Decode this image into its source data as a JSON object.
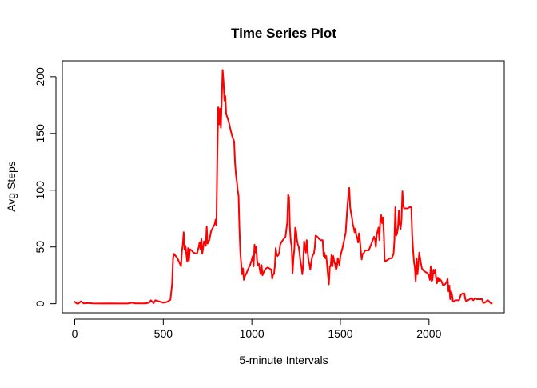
{
  "chart_data": {
    "type": "line",
    "title": "Time Series Plot",
    "xlabel": "5-minute Intervals",
    "ylabel": "Avg Steps",
    "xlim": [
      -70,
      2425
    ],
    "ylim": [
      -8,
      214
    ],
    "x_ticks": [
      0,
      500,
      1000,
      1500,
      2000
    ],
    "y_ticks": [
      0,
      50,
      100,
      150,
      200
    ],
    "grid": false,
    "legend": "none",
    "series": [
      {
        "color": "#ff0000",
        "points": [
          [
            0,
            1.7
          ],
          [
            10,
            0.3
          ],
          [
            20,
            0.1
          ],
          [
            35,
            2.1
          ],
          [
            50,
            0.3
          ],
          [
            80,
            0.6
          ],
          [
            100,
            0.3
          ],
          [
            150,
            0.2
          ],
          [
            200,
            0.3
          ],
          [
            250,
            0.2
          ],
          [
            300,
            0.2
          ],
          [
            325,
            1.0
          ],
          [
            340,
            0.3
          ],
          [
            400,
            0.3
          ],
          [
            420,
            1.0
          ],
          [
            430,
            3.0
          ],
          [
            445,
            0.5
          ],
          [
            455,
            3.0
          ],
          [
            500,
            0.9
          ],
          [
            520,
            1.5
          ],
          [
            540,
            3.4
          ],
          [
            550,
            18
          ],
          [
            555,
            40
          ],
          [
            560,
            44
          ],
          [
            580,
            40
          ],
          [
            600,
            33
          ],
          [
            605,
            46
          ],
          [
            610,
            52
          ],
          [
            615,
            63
          ],
          [
            620,
            48
          ],
          [
            625,
            51
          ],
          [
            630,
            44
          ],
          [
            635,
            37
          ],
          [
            640,
            49
          ],
          [
            645,
            38
          ],
          [
            650,
            48
          ],
          [
            660,
            47
          ],
          [
            670,
            45
          ],
          [
            690,
            44
          ],
          [
            700,
            50
          ],
          [
            705,
            54
          ],
          [
            710,
            48
          ],
          [
            715,
            57
          ],
          [
            720,
            44
          ],
          [
            730,
            55
          ],
          [
            740,
            51
          ],
          [
            745,
            68
          ],
          [
            750,
            53
          ],
          [
            760,
            56
          ],
          [
            770,
            64
          ],
          [
            780,
            67
          ],
          [
            790,
            70
          ],
          [
            795,
            74
          ],
          [
            800,
            69
          ],
          [
            805,
            130
          ],
          [
            810,
            173
          ],
          [
            815,
            158
          ],
          [
            820,
            172
          ],
          [
            825,
            155
          ],
          [
            830,
            180
          ],
          [
            835,
            206
          ],
          [
            840,
            196
          ],
          [
            845,
            179
          ],
          [
            850,
            183
          ],
          [
            855,
            167
          ],
          [
            860,
            165
          ],
          [
            870,
            160
          ],
          [
            880,
            153
          ],
          [
            890,
            147
          ],
          [
            900,
            143
          ],
          [
            905,
            124
          ],
          [
            910,
            114
          ],
          [
            915,
            108
          ],
          [
            920,
            100
          ],
          [
            925,
            95
          ],
          [
            930,
            66
          ],
          [
            935,
            45
          ],
          [
            940,
            35
          ],
          [
            945,
            26
          ],
          [
            950,
            31
          ],
          [
            955,
            21
          ],
          [
            960,
            24
          ],
          [
            970,
            27
          ],
          [
            980,
            31
          ],
          [
            990,
            34
          ],
          [
            1000,
            39
          ],
          [
            1005,
            42
          ],
          [
            1010,
            33
          ],
          [
            1015,
            52
          ],
          [
            1020,
            45
          ],
          [
            1025,
            50
          ],
          [
            1030,
            37
          ],
          [
            1035,
            34
          ],
          [
            1040,
            35
          ],
          [
            1045,
            30
          ],
          [
            1050,
            26
          ],
          [
            1055,
            34
          ],
          [
            1060,
            25
          ],
          [
            1070,
            29
          ],
          [
            1080,
            31
          ],
          [
            1090,
            32
          ],
          [
            1100,
            31
          ],
          [
            1110,
            30
          ],
          [
            1115,
            22
          ],
          [
            1120,
            26
          ],
          [
            1125,
            26
          ],
          [
            1130,
            33
          ],
          [
            1135,
            49
          ],
          [
            1140,
            43
          ],
          [
            1145,
            42
          ],
          [
            1150,
            43
          ],
          [
            1155,
            45
          ],
          [
            1160,
            52
          ],
          [
            1170,
            55
          ],
          [
            1180,
            57
          ],
          [
            1190,
            59
          ],
          [
            1200,
            72
          ],
          [
            1205,
            96
          ],
          [
            1210,
            94
          ],
          [
            1215,
            66
          ],
          [
            1220,
            55
          ],
          [
            1225,
            50
          ],
          [
            1230,
            27
          ],
          [
            1235,
            40
          ],
          [
            1240,
            48
          ],
          [
            1245,
            67
          ],
          [
            1250,
            64
          ],
          [
            1255,
            56
          ],
          [
            1260,
            52
          ],
          [
            1265,
            50
          ],
          [
            1270,
            44
          ],
          [
            1275,
            37
          ],
          [
            1280,
            33
          ],
          [
            1285,
            26
          ],
          [
            1290,
            34
          ],
          [
            1295,
            55
          ],
          [
            1300,
            50
          ],
          [
            1305,
            45
          ],
          [
            1310,
            56
          ],
          [
            1315,
            46
          ],
          [
            1320,
            38
          ],
          [
            1325,
            35
          ],
          [
            1330,
            30
          ],
          [
            1335,
            36
          ],
          [
            1340,
            41
          ],
          [
            1345,
            43
          ],
          [
            1350,
            44
          ],
          [
            1355,
            49
          ],
          [
            1360,
            60
          ],
          [
            1370,
            59
          ],
          [
            1380,
            57
          ],
          [
            1390,
            56
          ],
          [
            1400,
            56
          ],
          [
            1405,
            42
          ],
          [
            1410,
            45
          ],
          [
            1415,
            40
          ],
          [
            1420,
            42
          ],
          [
            1425,
            34
          ],
          [
            1430,
            25
          ],
          [
            1435,
            17
          ],
          [
            1440,
            33
          ],
          [
            1445,
            33
          ],
          [
            1450,
            43
          ],
          [
            1455,
            33
          ],
          [
            1460,
            42
          ],
          [
            1465,
            37
          ],
          [
            1470,
            35
          ],
          [
            1475,
            30
          ],
          [
            1480,
            32
          ],
          [
            1485,
            40
          ],
          [
            1490,
            37
          ],
          [
            1495,
            34
          ],
          [
            1500,
            42
          ],
          [
            1510,
            48
          ],
          [
            1520,
            55
          ],
          [
            1530,
            63
          ],
          [
            1540,
            87
          ],
          [
            1545,
            95
          ],
          [
            1550,
            102
          ],
          [
            1555,
            85
          ],
          [
            1560,
            80
          ],
          [
            1565,
            76
          ],
          [
            1570,
            70
          ],
          [
            1575,
            67
          ],
          [
            1580,
            63
          ],
          [
            1585,
            66
          ],
          [
            1590,
            60
          ],
          [
            1595,
            58
          ],
          [
            1600,
            54
          ],
          [
            1605,
            62
          ],
          [
            1610,
            56
          ],
          [
            1615,
            47
          ],
          [
            1620,
            39
          ],
          [
            1625,
            44
          ],
          [
            1630,
            44
          ],
          [
            1640,
            47
          ],
          [
            1650,
            47
          ],
          [
            1660,
            47
          ],
          [
            1670,
            51
          ],
          [
            1680,
            55
          ],
          [
            1690,
            59
          ],
          [
            1695,
            57
          ],
          [
            1700,
            50
          ],
          [
            1705,
            61
          ],
          [
            1710,
            64
          ],
          [
            1715,
            67
          ],
          [
            1720,
            56
          ],
          [
            1725,
            73
          ],
          [
            1730,
            78
          ],
          [
            1735,
            71
          ],
          [
            1740,
            76
          ],
          [
            1745,
            62
          ],
          [
            1750,
            37
          ],
          [
            1760,
            38
          ],
          [
            1770,
            39
          ],
          [
            1780,
            40
          ],
          [
            1790,
            40
          ],
          [
            1800,
            44
          ],
          [
            1805,
            56
          ],
          [
            1810,
            85
          ],
          [
            1815,
            60
          ],
          [
            1820,
            62
          ],
          [
            1825,
            67
          ],
          [
            1830,
            82
          ],
          [
            1835,
            70
          ],
          [
            1840,
            66
          ],
          [
            1845,
            75
          ],
          [
            1850,
            99
          ],
          [
            1855,
            86
          ],
          [
            1860,
            84
          ],
          [
            1870,
            84
          ],
          [
            1880,
            84
          ],
          [
            1890,
            85
          ],
          [
            1900,
            85
          ],
          [
            1905,
            61
          ],
          [
            1910,
            48
          ],
          [
            1915,
            37
          ],
          [
            1920,
            32
          ],
          [
            1925,
            20
          ],
          [
            1930,
            40
          ],
          [
            1935,
            26
          ],
          [
            1940,
            35
          ],
          [
            1945,
            45
          ],
          [
            1950,
            40
          ],
          [
            1955,
            35
          ],
          [
            1960,
            31
          ],
          [
            1970,
            29
          ],
          [
            1980,
            28
          ],
          [
            1990,
            27
          ],
          [
            2000,
            25
          ],
          [
            2005,
            21
          ],
          [
            2010,
            33
          ],
          [
            2015,
            20
          ],
          [
            2020,
            21
          ],
          [
            2025,
            30
          ],
          [
            2030,
            27
          ],
          [
            2035,
            30
          ],
          [
            2040,
            23
          ],
          [
            2045,
            18
          ],
          [
            2050,
            23
          ],
          [
            2055,
            20
          ],
          [
            2060,
            22
          ],
          [
            2070,
            20
          ],
          [
            2080,
            16
          ],
          [
            2090,
            17
          ],
          [
            2100,
            19
          ],
          [
            2105,
            22
          ],
          [
            2110,
            11
          ],
          [
            2115,
            16
          ],
          [
            2120,
            4
          ],
          [
            2125,
            11
          ],
          [
            2130,
            8
          ],
          [
            2135,
            2
          ],
          [
            2140,
            2
          ],
          [
            2150,
            3
          ],
          [
            2160,
            3
          ],
          [
            2170,
            3
          ],
          [
            2180,
            8
          ],
          [
            2190,
            9
          ],
          [
            2200,
            9
          ],
          [
            2205,
            4
          ],
          [
            2210,
            2
          ],
          [
            2220,
            3
          ],
          [
            2230,
            4
          ],
          [
            2240,
            5
          ],
          [
            2250,
            3
          ],
          [
            2260,
            5
          ],
          [
            2270,
            4
          ],
          [
            2280,
            4
          ],
          [
            2290,
            4
          ],
          [
            2300,
            4
          ],
          [
            2305,
            1
          ],
          [
            2310,
            0.7
          ],
          [
            2315,
            1
          ],
          [
            2320,
            1.5
          ],
          [
            2330,
            3
          ],
          [
            2335,
            2.8
          ],
          [
            2340,
            2
          ],
          [
            2345,
            1
          ],
          [
            2350,
            0.5
          ],
          [
            2355,
            0.3
          ]
        ]
      }
    ]
  }
}
